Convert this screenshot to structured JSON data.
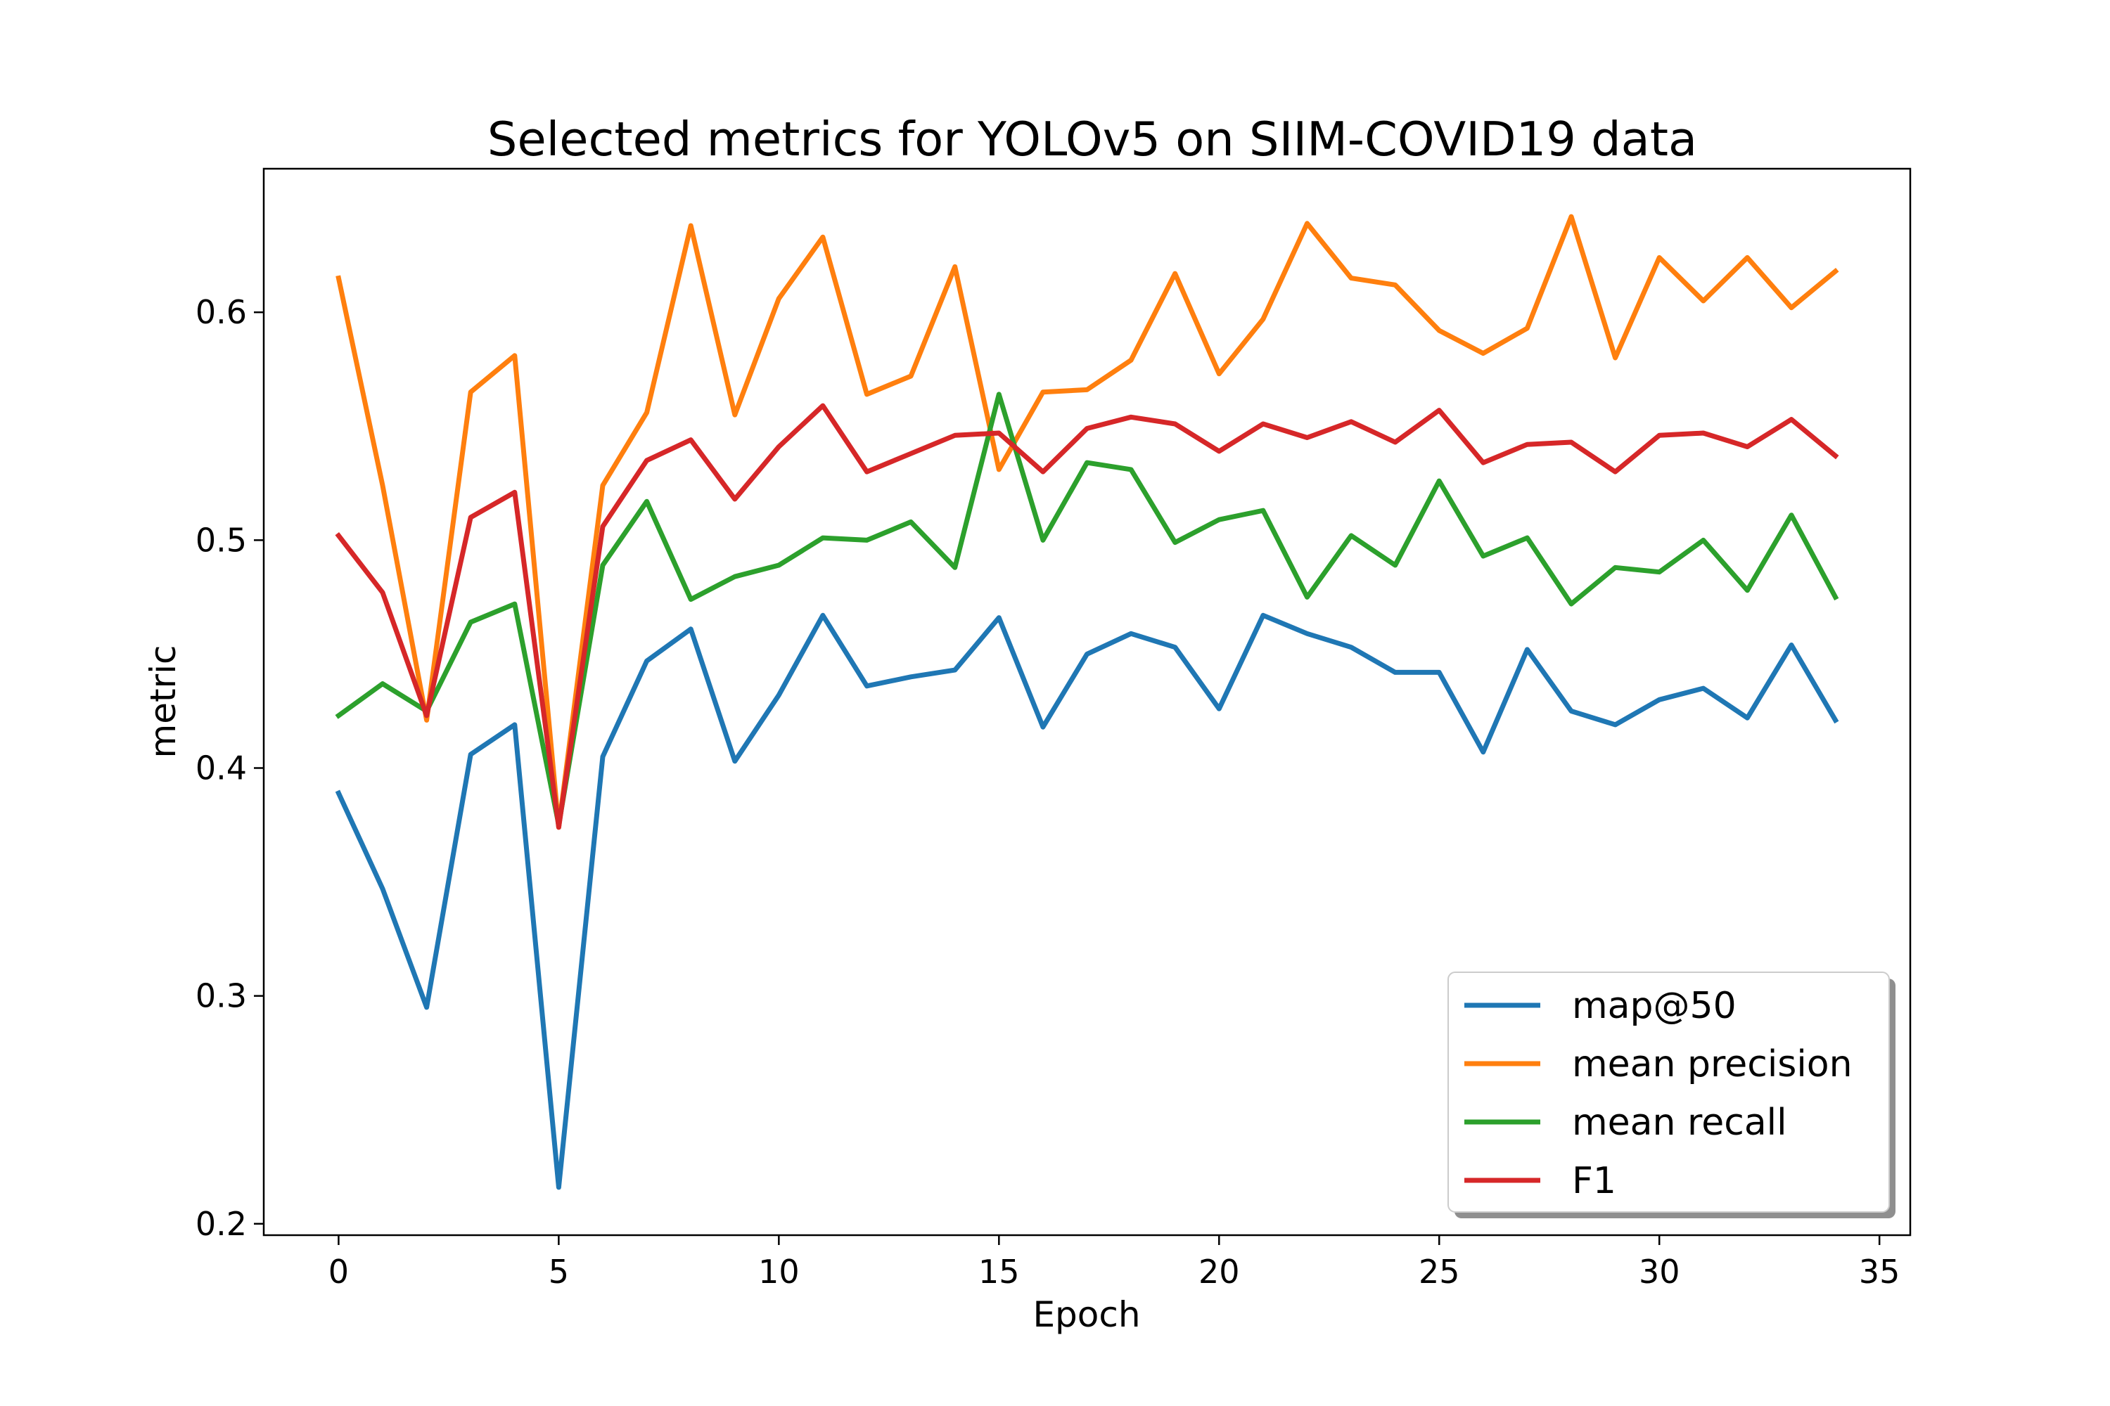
{
  "chart_data": {
    "type": "line",
    "title": "Selected metrics for YOLOv5 on SIIM-COVID19 data",
    "xlabel": "Epoch",
    "ylabel": "metric",
    "xlim": [
      -1.7,
      35.7
    ],
    "ylim": [
      0.195,
      0.663
    ],
    "xticks": [
      0,
      5,
      10,
      15,
      20,
      25,
      30,
      35
    ],
    "yticks": [
      0.2,
      0.3,
      0.4,
      0.5,
      0.6
    ],
    "ytick_labels": [
      "0.2",
      "0.3",
      "0.4",
      "0.5",
      "0.6"
    ],
    "grid": false,
    "legend_position": "lower-right",
    "x": [
      0,
      1,
      2,
      3,
      4,
      5,
      6,
      7,
      8,
      9,
      10,
      11,
      12,
      13,
      14,
      15,
      16,
      17,
      18,
      19,
      20,
      21,
      22,
      23,
      24,
      25,
      26,
      27,
      28,
      29,
      30,
      31,
      32,
      33,
      34
    ],
    "series": [
      {
        "name": "map@50",
        "color": "#1f77b4",
        "values": [
          0.389,
          0.347,
          0.295,
          0.406,
          0.419,
          0.216,
          0.405,
          0.447,
          0.461,
          0.403,
          0.432,
          0.467,
          0.436,
          0.44,
          0.443,
          0.466,
          0.418,
          0.45,
          0.459,
          0.453,
          0.426,
          0.467,
          0.459,
          0.453,
          0.442,
          0.442,
          0.407,
          0.452,
          0.425,
          0.419,
          0.43,
          0.435,
          0.422,
          0.454,
          0.421
        ]
      },
      {
        "name": "mean precision",
        "color": "#ff7f0e",
        "values": [
          0.615,
          0.524,
          0.421,
          0.565,
          0.581,
          0.374,
          0.524,
          0.556,
          0.638,
          0.555,
          0.606,
          0.633,
          0.564,
          0.572,
          0.62,
          0.531,
          0.565,
          0.566,
          0.579,
          0.617,
          0.573,
          0.597,
          0.639,
          0.615,
          0.612,
          0.592,
          0.582,
          0.593,
          0.642,
          0.58,
          0.624,
          0.605,
          0.624,
          0.602,
          0.618
        ]
      },
      {
        "name": "mean recall",
        "color": "#2ca02c",
        "values": [
          0.423,
          0.437,
          0.425,
          0.464,
          0.472,
          0.375,
          0.489,
          0.517,
          0.474,
          0.484,
          0.489,
          0.501,
          0.5,
          0.508,
          0.488,
          0.564,
          0.5,
          0.534,
          0.531,
          0.499,
          0.509,
          0.513,
          0.475,
          0.502,
          0.489,
          0.526,
          0.493,
          0.501,
          0.472,
          0.488,
          0.486,
          0.5,
          0.478,
          0.511,
          0.475
        ]
      },
      {
        "name": "F1",
        "color": "#d62728",
        "values": [
          0.502,
          0.477,
          0.423,
          0.51,
          0.521,
          0.374,
          0.506,
          0.535,
          0.544,
          0.518,
          0.541,
          0.559,
          0.53,
          0.538,
          0.546,
          0.547,
          0.53,
          0.549,
          0.554,
          0.551,
          0.539,
          0.551,
          0.545,
          0.552,
          0.543,
          0.557,
          0.534,
          0.542,
          0.543,
          0.53,
          0.546,
          0.547,
          0.541,
          0.553,
          0.537
        ]
      }
    ]
  }
}
